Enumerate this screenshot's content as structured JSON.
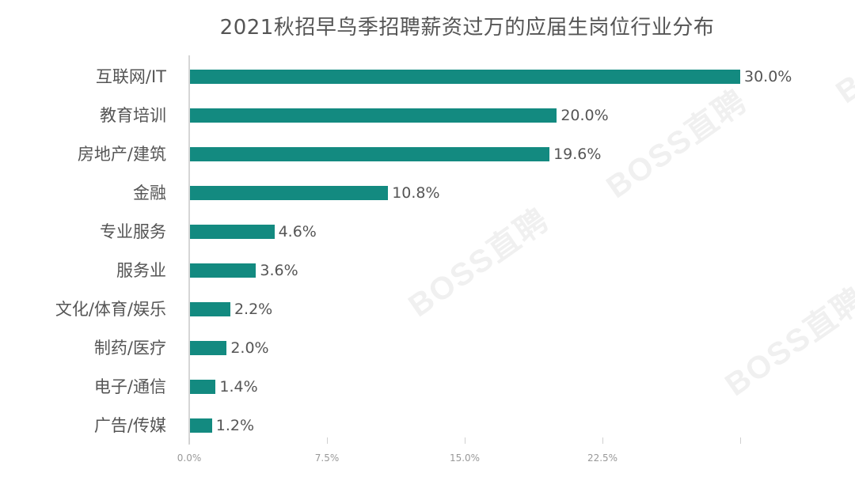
{
  "chart_data": {
    "type": "bar",
    "orientation": "horizontal",
    "title": "2021秋招早鸟季招聘薪资过万的应届生岗位行业分布",
    "categories": [
      "互联网/IT",
      "教育培训",
      "房地产/建筑",
      "金融",
      "专业服务",
      "服务业",
      "文化/体育/娱乐",
      "制药/医疗",
      "电子/通信",
      "广告/传媒"
    ],
    "values": [
      30.0,
      20.0,
      19.6,
      10.8,
      4.6,
      3.6,
      2.2,
      2.0,
      1.4,
      1.2
    ],
    "value_labels": [
      "30.0%",
      "20.0%",
      "19.6%",
      "10.8%",
      "4.6%",
      "3.6%",
      "2.2%",
      "2.0%",
      "1.4%",
      "1.2%"
    ],
    "xlabel": "",
    "ylabel": "",
    "xlim": [
      0,
      30
    ],
    "x_ticks": [
      "0.0%",
      "7.5%",
      "15.0%",
      "22.5%"
    ],
    "grid": false,
    "legend": null,
    "bar_color": "#138a80"
  },
  "watermark": "BOSS直聘"
}
